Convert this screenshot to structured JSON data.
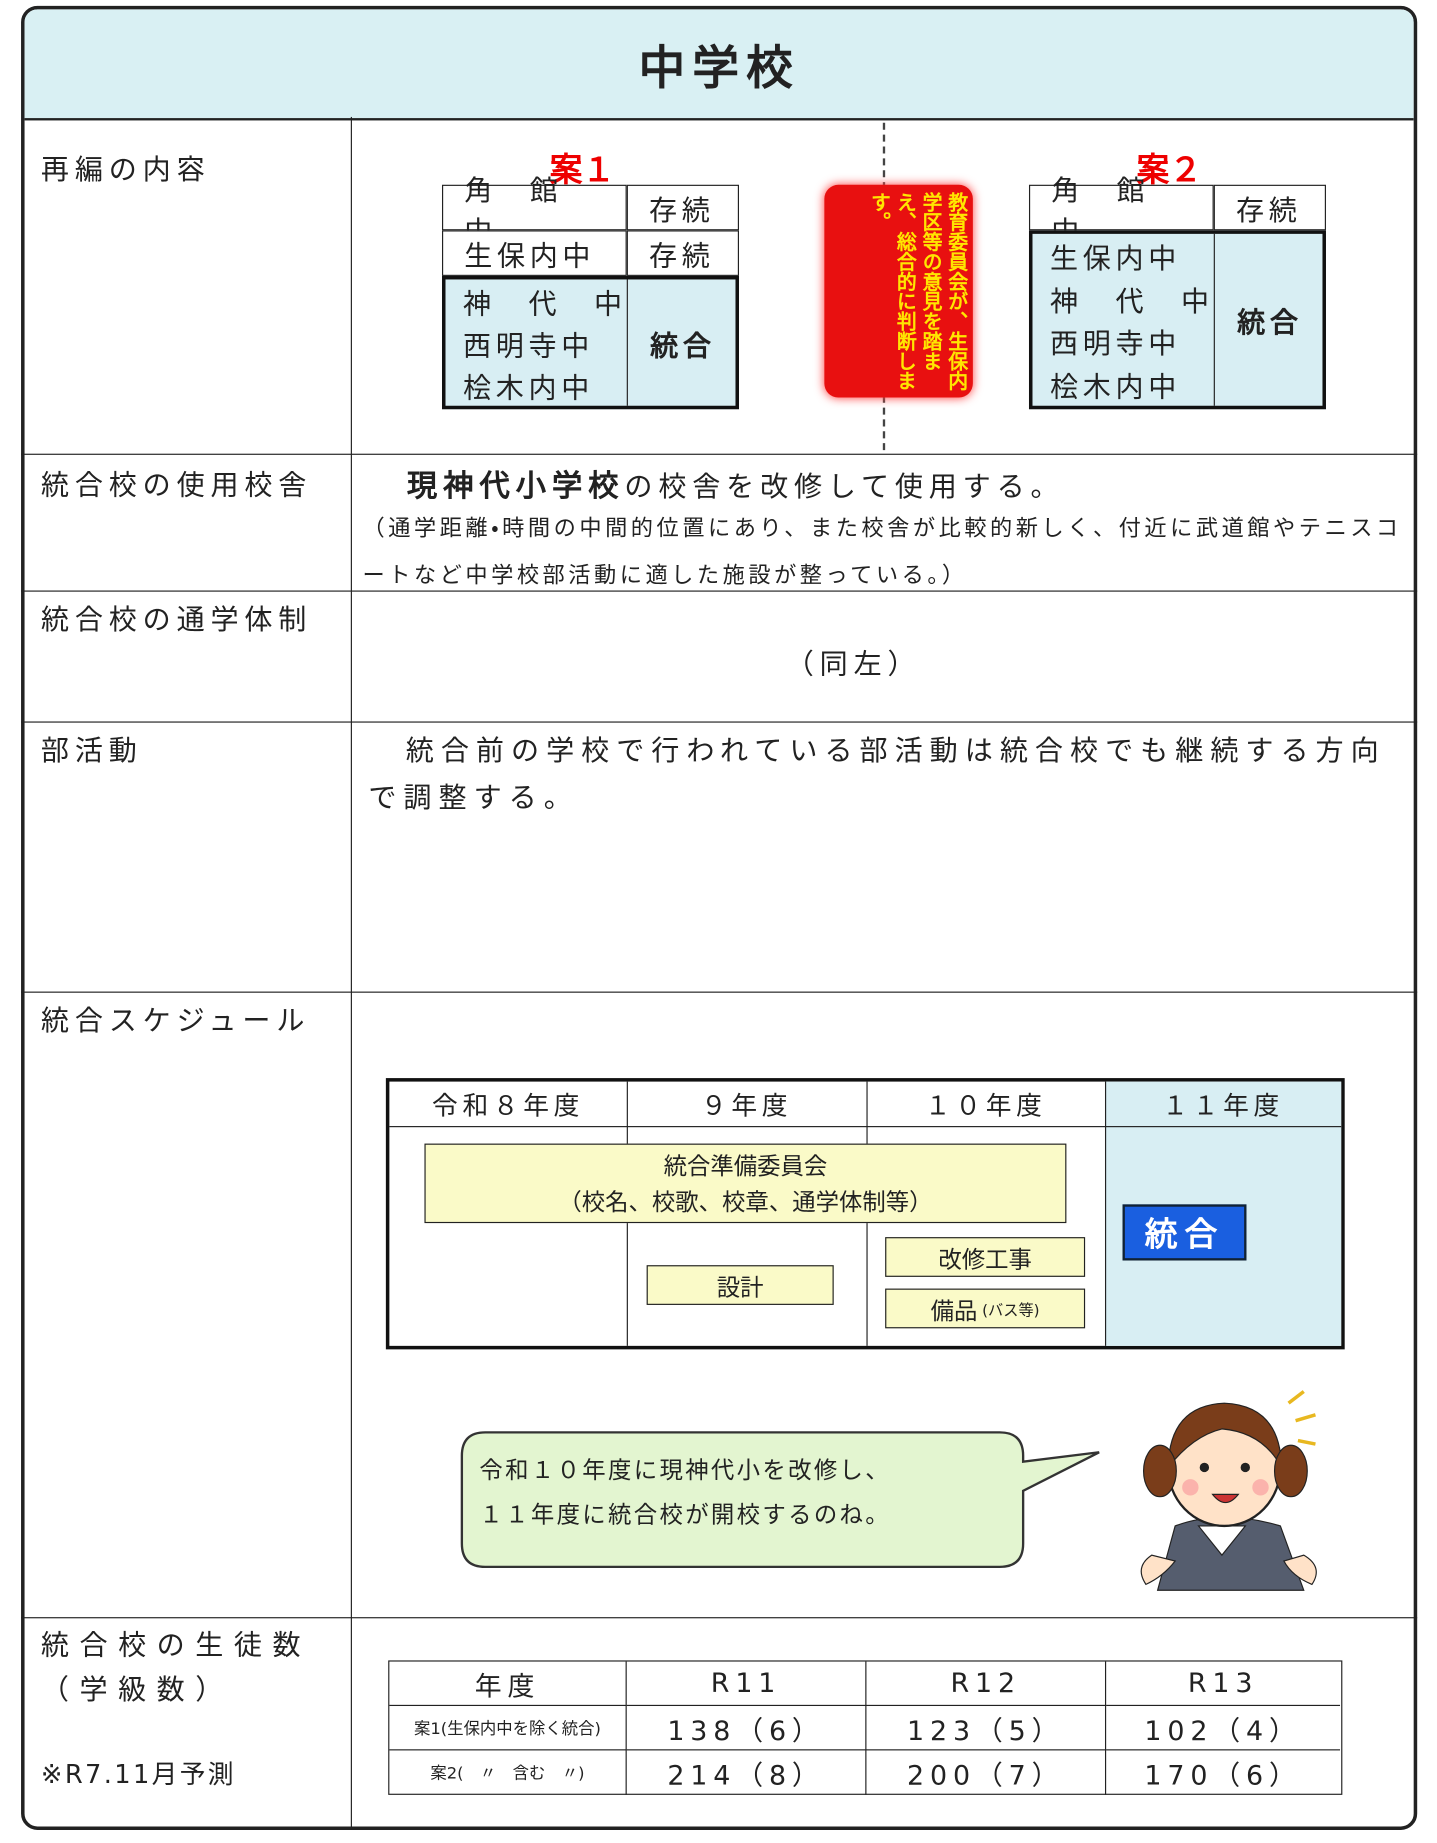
{
  "header": {
    "title": "中学校"
  },
  "reorganization": {
    "label": "再編の内容",
    "plan1": {
      "title": "案１",
      "continue": [
        {
          "school": "角　館　中",
          "status": "存続"
        },
        {
          "school": "生保内中",
          "status": "存続"
        }
      ],
      "merge": {
        "schools": [
          "神　代　中",
          "西明寺中",
          "桧木内中"
        ],
        "status": "統合"
      }
    },
    "plan2": {
      "title": "案２",
      "continue": [
        {
          "school": "角　館　中",
          "status": "存続"
        }
      ],
      "merge": {
        "schools": [
          "生保内中",
          "神　代　中",
          "西明寺中",
          "桧木内中"
        ],
        "status": "統合"
      }
    },
    "note": "教育委員会が、生保内学区等の意見を踏まえ、総合的に判断します。"
  },
  "building": {
    "label": "統合校の使用校舎",
    "lead": "現神代小学校",
    "text": "の校舎を改修して使用する。",
    "note": "（通学距離・時間の中間的位置にあり、また校舎が比較的新しく、付近に武道館やテニスコートなど中学校部活動に適した施設が整っている。）"
  },
  "commute": {
    "label": "統合校の通学体制",
    "text": "（同左）"
  },
  "clubs": {
    "label": "部活動",
    "text": "統合前の学校で行われている部活動は統合校でも継続する方向で調整する。"
  },
  "schedule": {
    "label": "統合スケジュール",
    "years": [
      "令和８年度",
      "９年度",
      "１０年度",
      "１１年度"
    ],
    "committee": [
      "統合準備委員会",
      "（校名、校歌、校章、通学体制等）"
    ],
    "design": "設計",
    "renovation": "改修工事",
    "equipment": "備品",
    "equipment_note": "(バス等)",
    "merge": "統合",
    "speech": [
      "令和１０年度に現神代小を改修し、",
      "１１年度に統合校が開校するのね。"
    ]
  },
  "students": {
    "label": [
      "統合校の生徒数",
      "（学級数）"
    ],
    "note": "※R7.11月予測",
    "table": {
      "header": [
        "年度",
        "R11",
        "R12",
        "R13"
      ],
      "rows": [
        [
          "案1(生保内中を除く統合)",
          "138（6）",
          "123（5）",
          "102（4）"
        ],
        [
          "案2(　〃　含む　〃)",
          "214（8）",
          "200（7）",
          "170（6）"
        ]
      ]
    }
  }
}
